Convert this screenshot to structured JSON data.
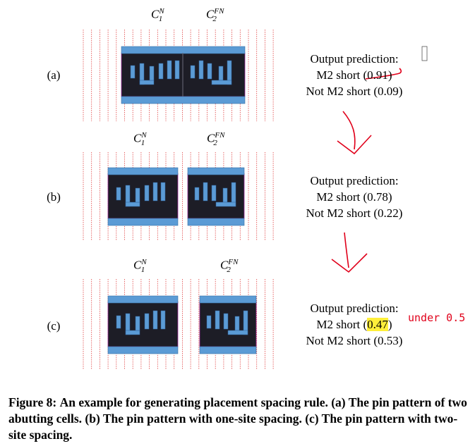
{
  "panels": [
    {
      "label": "(a)",
      "cell1": {
        "base": "C",
        "sub": "1",
        "sup": "N"
      },
      "cell2": {
        "base": "C",
        "sub": "2",
        "sup": "FN"
      },
      "prediction_title": "Output prediction:",
      "m2_prefix": "M2 short (",
      "m2_value": "0.91",
      "m2_suffix": ")",
      "not_m2": "Not M2 short (0.09)"
    },
    {
      "label": "(b)",
      "cell1": {
        "base": "C",
        "sub": "1",
        "sup": "N"
      },
      "cell2": {
        "base": "C",
        "sub": "2",
        "sup": "FN"
      },
      "prediction_title": "Output prediction:",
      "m2_prefix": "M2 short (",
      "m2_value": "0.78",
      "m2_suffix": ")",
      "not_m2": "Not M2 short (0.22)"
    },
    {
      "label": "(c)",
      "cell1": {
        "base": "C",
        "sub": "1",
        "sup": "N"
      },
      "cell2": {
        "base": "C",
        "sub": "2",
        "sup": "FN"
      },
      "prediction_title": "Output prediction:",
      "m2_prefix": "M2 short (",
      "m2_value": "0.47",
      "m2_suffix": ")",
      "not_m2": "Not M2 short (0.53)"
    }
  ],
  "annotation": "under 0.5",
  "caption": {
    "label": "Figure 8:",
    "text": "An example for generating placement spacing rule. (a) The pin pattern of two abutting cells. (b) The pin pattern with one-site spacing. (c) The pin pattern with two-site spacing."
  },
  "colors": {
    "cell_body": "#1d1d26",
    "rail": "#5b9bd5",
    "pin": "#5b9bd5",
    "grid_line": "#e04040",
    "annotation": "#e0001a",
    "highlight": "#ffef3a"
  }
}
